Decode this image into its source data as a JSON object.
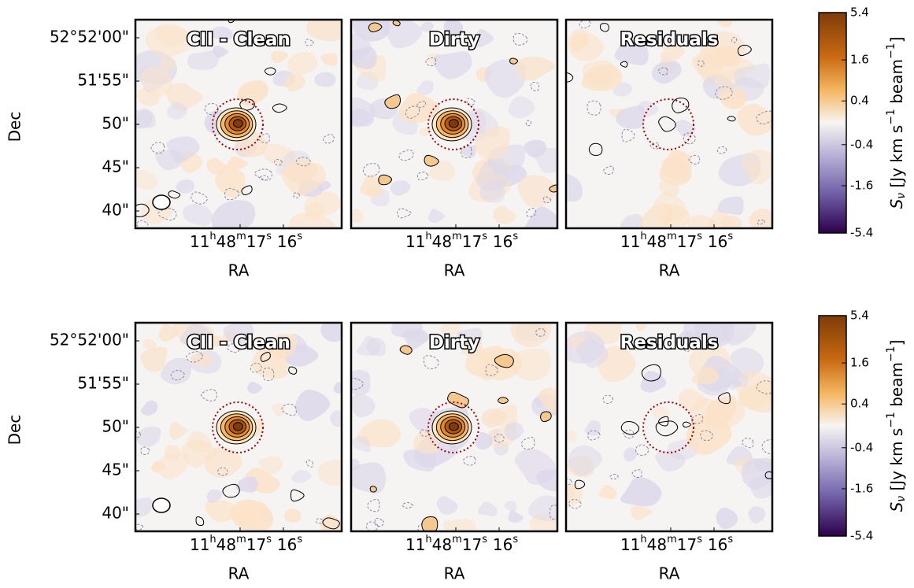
{
  "rows": [
    {
      "panels": [
        {
          "title": "CII - Clean"
        },
        {
          "title": "Dirty"
        },
        {
          "title": "Residuals"
        }
      ],
      "y_label": "Dec",
      "x_label": "RA",
      "yticks": [
        "52°52'00\"",
        "51'55\"",
        "50\"",
        "45\"",
        "40\""
      ],
      "xticks": [
        {
          "parts": [
            "11",
            "h",
            "48",
            "m",
            "17",
            "s"
          ]
        },
        {
          "parts": [
            "16",
            "s"
          ]
        }
      ],
      "colorbar": {
        "label": [
          "S",
          "ν",
          " [Jy km s",
          "−1",
          " beam",
          "−1",
          "]"
        ],
        "scale": "asinh",
        "lim": [
          -5.4,
          5.4
        ],
        "ticks": [
          5.4,
          1.6,
          0.4,
          -0.4,
          -1.6,
          -5.4
        ]
      }
    },
    {
      "panels": [
        {
          "title": "CII - Clean"
        },
        {
          "title": "Dirty"
        },
        {
          "title": "Residuals"
        }
      ],
      "y_label": "Dec",
      "x_label": "RA",
      "yticks": [
        "52°52'00\"",
        "51'55\"",
        "50\"",
        "45\"",
        "40\""
      ],
      "xticks": [
        {
          "parts": [
            "11",
            "h",
            "48",
            "m",
            "17",
            "s"
          ]
        },
        {
          "parts": [
            "16",
            "s"
          ]
        }
      ],
      "colorbar": {
        "label": [
          "S",
          "ν",
          " [Jy km s",
          "−1",
          " beam",
          "−1",
          "]"
        ],
        "scale": "asinh",
        "lim": [
          -5.4,
          5.4
        ],
        "ticks": [
          5.4,
          1.6,
          0.4,
          -0.4,
          -1.6,
          -5.4
        ]
      }
    }
  ]
}
